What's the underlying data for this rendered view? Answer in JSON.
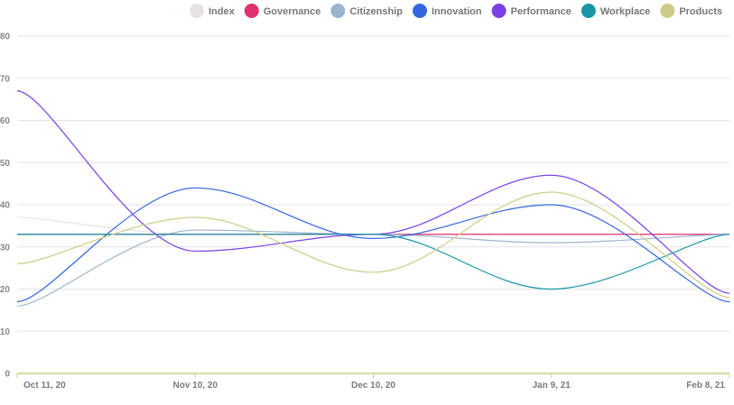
{
  "chart_data": {
    "type": "line",
    "x": [
      "Oct 11, 20",
      "Nov 10, 20",
      "Dec 10, 20",
      "Jan 9, 21",
      "Feb 8, 21"
    ],
    "ylim": [
      0,
      80
    ],
    "yticks": [
      0,
      10,
      20,
      30,
      40,
      50,
      60,
      70,
      80
    ],
    "grid": true,
    "legend_position": "top-right",
    "series": [
      {
        "name": "Index",
        "color": "#e8e2e6",
        "values": [
          37,
          33,
          33,
          33,
          33
        ]
      },
      {
        "name": "Governance",
        "color": "#e0316f",
        "values": [
          33,
          33,
          33,
          33,
          33
        ]
      },
      {
        "name": "Citizenship",
        "color": "#9cb3cf",
        "values": [
          16,
          34,
          33,
          31,
          33
        ]
      },
      {
        "name": "Innovation",
        "color": "#3466e0",
        "values": [
          17,
          44,
          32,
          40,
          17
        ]
      },
      {
        "name": "Performance",
        "color": "#7a3fe6",
        "values": [
          67,
          29,
          33,
          47,
          19
        ]
      },
      {
        "name": "Workplace",
        "color": "#1a95a8",
        "values": [
          33,
          33,
          33,
          20,
          33
        ]
      },
      {
        "name": "Products",
        "color": "#cdcc86",
        "values": [
          26,
          37,
          24,
          43,
          18
        ]
      }
    ]
  }
}
